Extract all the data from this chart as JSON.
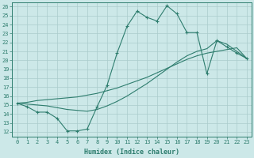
{
  "xlabel": "Humidex (Indice chaleur)",
  "xlim": [
    -0.5,
    23.5
  ],
  "ylim": [
    11.5,
    26.5
  ],
  "yticks": [
    12,
    13,
    14,
    15,
    16,
    17,
    18,
    19,
    20,
    21,
    22,
    23,
    24,
    25,
    26
  ],
  "xticks": [
    0,
    1,
    2,
    3,
    4,
    5,
    6,
    7,
    8,
    9,
    10,
    11,
    12,
    13,
    14,
    15,
    16,
    17,
    18,
    19,
    20,
    21,
    22,
    23
  ],
  "line_color": "#2e7d6e",
  "bg_color": "#cce8e8",
  "grid_color": "#aacccc",
  "series1_x": [
    0,
    1,
    2,
    3,
    4,
    5,
    6,
    7,
    8,
    9,
    10,
    11,
    12,
    13,
    14,
    15,
    16,
    17,
    18,
    19,
    20,
    21,
    22,
    23
  ],
  "series1_y": [
    15.2,
    14.8,
    14.2,
    14.2,
    13.5,
    12.1,
    12.1,
    12.3,
    14.8,
    17.2,
    20.8,
    23.8,
    25.5,
    24.8,
    24.4,
    26.1,
    25.2,
    23.1,
    23.1,
    18.5,
    22.2,
    21.5,
    20.8,
    20.2
  ],
  "series2_x": [
    0,
    1,
    2,
    3,
    4,
    5,
    6,
    7,
    8,
    9,
    10,
    11,
    12,
    13,
    14,
    15,
    16,
    17,
    18,
    19,
    20,
    21,
    22,
    23
  ],
  "series2_y": [
    15.2,
    15.3,
    15.5,
    15.6,
    15.7,
    15.8,
    15.9,
    16.1,
    16.3,
    16.6,
    16.9,
    17.3,
    17.7,
    18.1,
    18.6,
    19.1,
    19.6,
    20.1,
    20.5,
    20.8,
    21.0,
    21.2,
    21.4,
    20.2
  ],
  "series3_x": [
    0,
    1,
    2,
    3,
    4,
    5,
    6,
    7,
    8,
    9,
    10,
    11,
    12,
    13,
    14,
    15,
    16,
    17,
    18,
    19,
    20,
    21,
    22,
    23
  ],
  "series3_y": [
    15.2,
    15.1,
    15.0,
    14.9,
    14.7,
    14.5,
    14.4,
    14.3,
    14.5,
    14.9,
    15.4,
    16.0,
    16.7,
    17.4,
    18.2,
    19.0,
    19.8,
    20.5,
    21.0,
    21.3,
    22.2,
    21.8,
    21.0,
    20.2
  ]
}
